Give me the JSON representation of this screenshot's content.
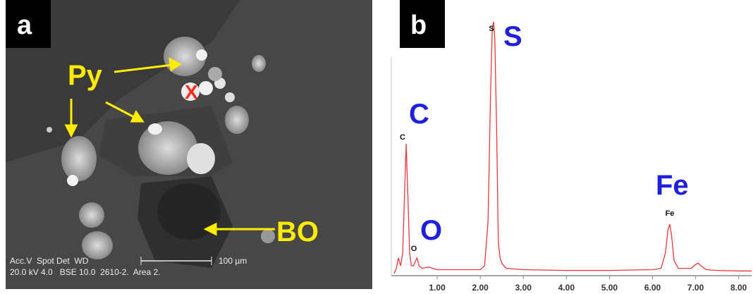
{
  "panel_a": {
    "label": "a",
    "py": "Py",
    "bo": "BO",
    "mark": "X",
    "info_line_1": "Acc.V  Spot Det  WD",
    "info_line_2": "20.0 kV 4.0   BSE 10.0  2610-2.  Area 2.",
    "scale": "100 µm"
  },
  "chart_data": {
    "type": "line",
    "panel_label": "b",
    "x": [
      0.0,
      0.05,
      0.1,
      0.15,
      0.2,
      0.24,
      0.28,
      0.32,
      0.36,
      0.4,
      0.45,
      0.5,
      0.53,
      0.58,
      0.65,
      0.8,
      1.0,
      1.5,
      2.0,
      2.1,
      2.18,
      2.24,
      2.28,
      2.31,
      2.34,
      2.38,
      2.42,
      2.46,
      2.5,
      2.6,
      3.0,
      4.0,
      5.0,
      6.0,
      6.2,
      6.3,
      6.36,
      6.4,
      6.44,
      6.5,
      6.6,
      6.9,
      7.0,
      7.06,
      7.12,
      7.25,
      7.5,
      8.0,
      8.3
    ],
    "values": [
      0,
      2,
      6,
      3,
      8,
      30,
      50,
      30,
      8,
      3,
      3,
      5,
      6,
      3,
      2,
      2.5,
      1.5,
      1.5,
      1.5,
      3,
      20,
      70,
      95,
      97,
      90,
      55,
      12,
      6,
      4,
      2,
      1.5,
      1.2,
      1.2,
      1.5,
      2,
      8,
      17,
      19,
      15,
      5,
      2,
      2,
      3.5,
      4,
      3,
      1.5,
      1.2,
      1,
      1
    ],
    "color": "#e8363a",
    "xlim": [
      0,
      8.3
    ],
    "ylim": [
      0,
      100
    ],
    "xticks": [
      {
        "value": 1,
        "label": "1.00"
      },
      {
        "value": 2,
        "label": "2.00"
      },
      {
        "value": 3,
        "label": "3.00"
      },
      {
        "value": 4,
        "label": "4.00"
      },
      {
        "value": 5,
        "label": "5.00"
      },
      {
        "value": 6,
        "label": "6.00"
      },
      {
        "value": 7,
        "label": "7.00"
      },
      {
        "value": 8,
        "label": "8.00"
      }
    ],
    "peak_labels": [
      "C",
      "O",
      "S",
      "Fe"
    ],
    "annotations": [
      "C",
      "O",
      "S",
      "Fe"
    ]
  }
}
